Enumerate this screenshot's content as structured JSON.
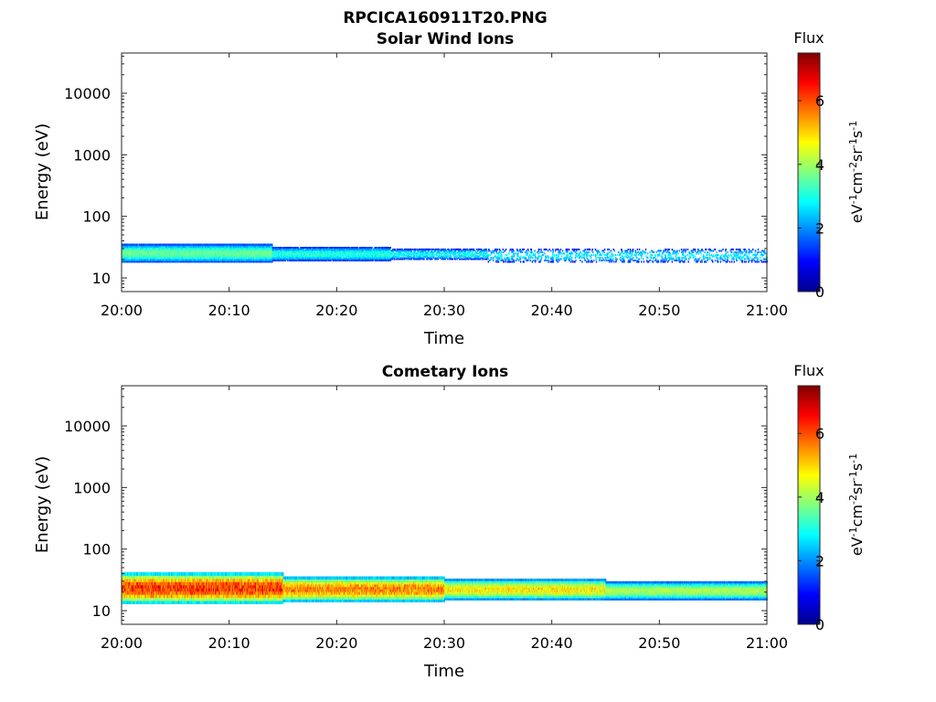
{
  "figure": {
    "title": "RPCICA160911T20.PNG"
  },
  "chart_data": [
    {
      "type": "heatmap",
      "title": "Solar Wind Ions",
      "xlabel": "Time",
      "ylabel": "Energy (eV)",
      "x_ticks": [
        "20:00",
        "20:10",
        "20:20",
        "20:30",
        "20:40",
        "20:50",
        "21:00"
      ],
      "xlim": [
        "20:00",
        "21:00"
      ],
      "y_scale": "log",
      "y_ticks": [
        "10",
        "100",
        "1000",
        "10000"
      ],
      "ylim": [
        6,
        45000
      ],
      "colorbar": {
        "title": "Flux",
        "label": "eV⁻¹cm⁻²sr⁻¹s⁻¹",
        "ticks": [
          "0",
          "2",
          "4",
          "6"
        ],
        "range": [
          0,
          7.5
        ],
        "colormap": "jet"
      },
      "bands": [
        {
          "t_start": "20:00",
          "t_end": "20:14",
          "energy_low": 18,
          "energy_high": 36,
          "flux": 3.6,
          "density": 0.95
        },
        {
          "t_start": "20:14",
          "t_end": "20:25",
          "energy_low": 19,
          "energy_high": 32,
          "flux": 3.1,
          "density": 0.75
        },
        {
          "t_start": "20:25",
          "t_end": "20:34",
          "energy_low": 20,
          "energy_high": 30,
          "flux": 2.9,
          "density": 0.45
        },
        {
          "t_start": "20:34",
          "t_end": "21:00",
          "energy_low": 18,
          "energy_high": 30,
          "flux": 2.7,
          "density": 0.2
        }
      ]
    },
    {
      "type": "heatmap",
      "title": "Cometary Ions",
      "xlabel": "Time",
      "ylabel": "Energy (eV)",
      "x_ticks": [
        "20:00",
        "20:10",
        "20:20",
        "20:30",
        "20:40",
        "20:50",
        "21:00"
      ],
      "xlim": [
        "20:00",
        "21:00"
      ],
      "y_scale": "log",
      "y_ticks": [
        "10",
        "100",
        "1000",
        "10000"
      ],
      "ylim": [
        6,
        45000
      ],
      "colorbar": {
        "title": "Flux",
        "label": "eV⁻¹cm⁻²sr⁻¹s⁻¹",
        "ticks": [
          "0",
          "2",
          "4",
          "6"
        ],
        "range": [
          0,
          7.5
        ],
        "colormap": "jet"
      },
      "bands": [
        {
          "t_start": "20:00",
          "t_end": "20:15",
          "energy_low": 13,
          "energy_high": 42,
          "flux": 6.2,
          "density": 1.0
        },
        {
          "t_start": "20:15",
          "t_end": "20:30",
          "energy_low": 14,
          "energy_high": 36,
          "flux": 5.6,
          "density": 1.0
        },
        {
          "t_start": "20:30",
          "t_end": "20:45",
          "energy_low": 15,
          "energy_high": 33,
          "flux": 4.8,
          "density": 1.0
        },
        {
          "t_start": "20:45",
          "t_end": "21:00",
          "energy_low": 15,
          "energy_high": 30,
          "flux": 4.1,
          "density": 1.0
        }
      ]
    }
  ]
}
